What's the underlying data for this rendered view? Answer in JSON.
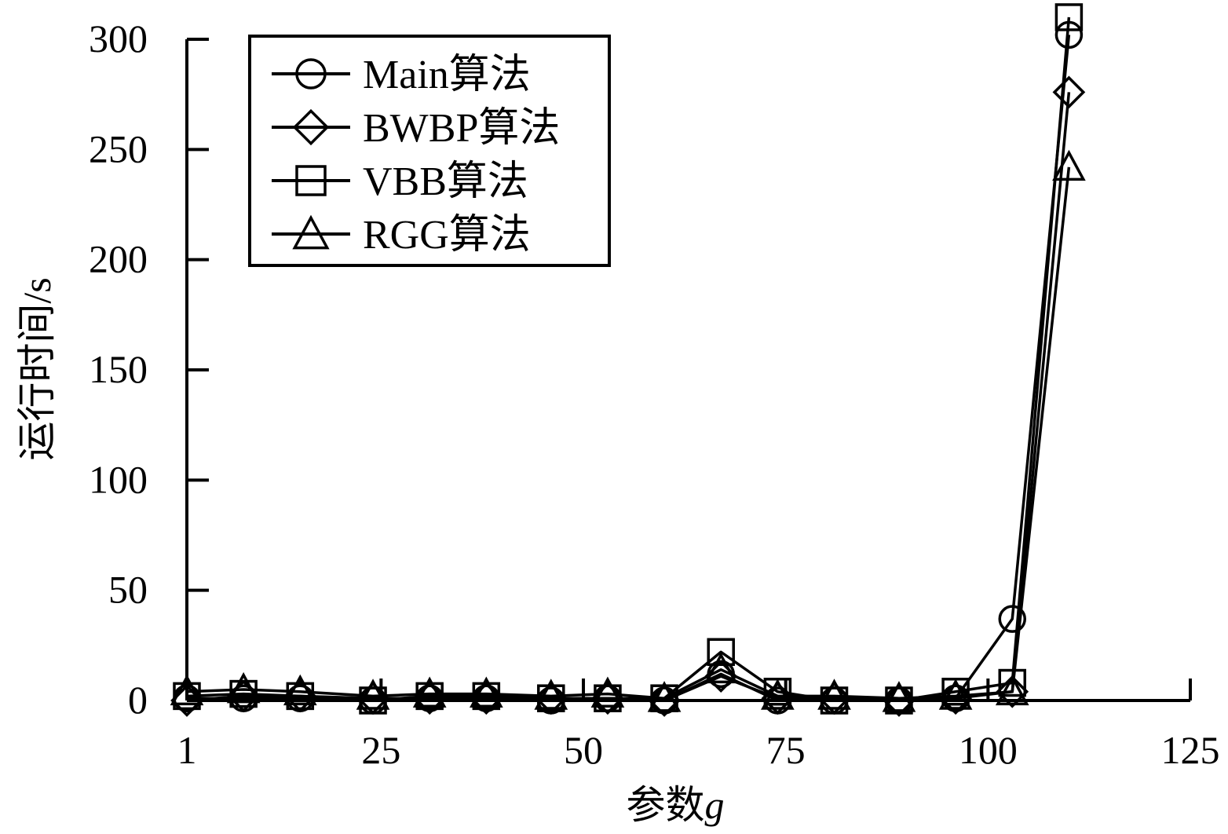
{
  "chart_data": {
    "type": "line",
    "xlabel": "参数",
    "xlabel_var": "g",
    "ylabel": "运行时间/s",
    "xlim": [
      1,
      125
    ],
    "ylim": [
      0,
      300
    ],
    "xticks": [
      1,
      25,
      50,
      75,
      100,
      125
    ],
    "yticks": [
      0,
      50,
      100,
      150,
      200,
      250,
      300
    ],
    "grid": false,
    "legend_position": "top-left",
    "x": [
      1,
      8,
      15,
      24,
      31,
      38,
      46,
      53,
      60,
      67,
      74,
      81,
      89,
      96,
      103,
      110
    ],
    "series": [
      {
        "name": "Main算法",
        "marker": "circle",
        "values": [
          1,
          1,
          1,
          0,
          1,
          1,
          0,
          1,
          0,
          12,
          0,
          0,
          0,
          1,
          37,
          302
        ]
      },
      {
        "name": "BWBP算法",
        "marker": "diamond",
        "values": [
          0,
          2,
          2,
          1,
          1,
          1,
          1,
          1,
          0,
          11,
          1,
          1,
          0,
          1,
          4,
          276
        ]
      },
      {
        "name": "VBB算法",
        "marker": "square",
        "values": [
          2,
          3,
          2,
          0,
          2,
          2,
          1,
          1,
          1,
          22,
          4,
          0,
          0,
          4,
          8,
          310
        ]
      },
      {
        "name": "RGG算法",
        "marker": "triangle",
        "values": [
          4,
          5,
          4,
          2,
          3,
          3,
          2,
          3,
          1,
          14,
          2,
          2,
          1,
          2,
          4,
          242
        ]
      }
    ]
  }
}
